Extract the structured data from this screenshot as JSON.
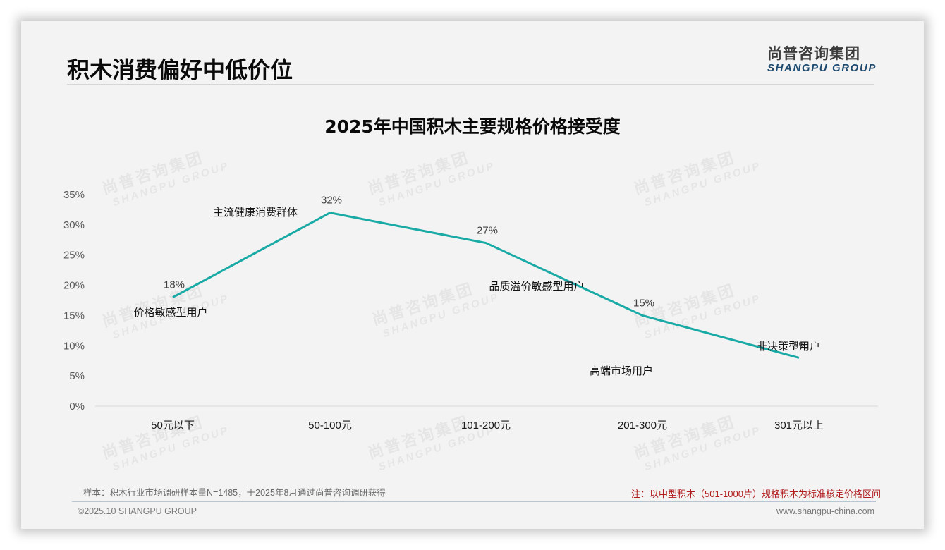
{
  "page": {
    "title": "积木消费偏好中低价位",
    "logo": {
      "cn": "尚普咨询集团",
      "en": "SHANGPU GROUP"
    },
    "watermark": {
      "cn": "尚普咨询集团",
      "en": "SHANGPU GROUP"
    },
    "sample_note": "样本：积木行业市场调研样本量N=1485，于2025年8月通过尚普咨询调研获得",
    "red_note": "注：以中型积木（501-1000片）规格积木为标准核定价格区间",
    "copyright": "©2025.10 SHANGPU GROUP",
    "website": "www.shangpu-china.com"
  },
  "colors": {
    "line": "#1aaaa6",
    "axis_text": "#595959",
    "note_red": "#b01c1c",
    "logo_blue": "#1d4a6e"
  },
  "chart_data": {
    "type": "line",
    "title": "2025年中国积木主要规格价格接受度",
    "xlabel": "",
    "ylabel": "",
    "categories": [
      "50元以下",
      "50-100元",
      "101-200元",
      "201-300元",
      "301元以上"
    ],
    "series": [
      {
        "name": "价格接受度",
        "values": [
          18,
          32,
          27,
          15,
          8
        ]
      }
    ],
    "value_labels": [
      "18%",
      "32%",
      "27%",
      "15%",
      "8%"
    ],
    "annotations": [
      "价格敏感型用户",
      "主流健康消费群体",
      "品质溢价敏感型用户",
      "高端市场用户",
      "非决策型用户"
    ],
    "y_ticks": [
      "0%",
      "5%",
      "10%",
      "15%",
      "20%",
      "25%",
      "30%",
      "35%"
    ],
    "ylim": [
      0,
      35
    ],
    "grid": false,
    "legend": "none"
  }
}
